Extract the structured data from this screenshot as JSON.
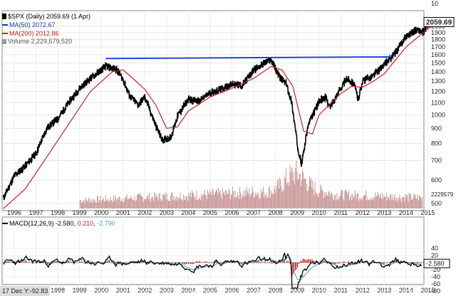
{
  "legend": {
    "title": "$SPX (Daily) 2059.69 (1 Apr)",
    "ma50": "MA(50) 2072.67",
    "ma200": "MA(200) 2012.86",
    "volume": "Volume 2,229,579,520"
  },
  "macd_legend": {
    "name": "MACD(12,26,9)",
    "v1": "-2.580",
    "v2": "0.210",
    "v3": "-2.790"
  },
  "price_box": "2059.69",
  "volume_box": "2229579",
  "macd_box": "-2.580",
  "readout": "17 Dec Y:-92.83",
  "top_fragment": "10",
  "colors": {
    "price": "#000000",
    "ma50": "#1a3aa8",
    "ma200": "#cc2222",
    "volume": "#c99999",
    "trendline": "#2244dd",
    "macd": "#000000",
    "signal": "#3aa8c8",
    "hist": "#cc2222"
  },
  "chart_data": {
    "type": "line",
    "title": "$SPX (Daily) 2059.69 (1 Apr)",
    "ylim": [
      500,
      2100
    ],
    "y_ticks": [
      500,
      600,
      700,
      800,
      900,
      1000,
      1100,
      1200,
      1300,
      1400,
      1500,
      1600,
      1700,
      1800,
      1900,
      2000
    ],
    "x_ticks": [
      "1996",
      "1997",
      "1998",
      "1999",
      "2000",
      "2001",
      "2002",
      "2003",
      "2004",
      "2005",
      "2006",
      "2007",
      "2008",
      "2009",
      "2010",
      "2011",
      "2012",
      "2013",
      "2014",
      "2015"
    ],
    "price": {
      "name": "$SPX",
      "x": [
        1995.5,
        1996.0,
        1996.5,
        1997.0,
        1997.5,
        1998.0,
        1998.5,
        1999.0,
        1999.5,
        2000.0,
        2000.2,
        2000.7,
        2001.0,
        2001.3,
        2001.7,
        2002.0,
        2002.5,
        2002.8,
        2003.2,
        2003.5,
        2004.0,
        2004.5,
        2005.0,
        2005.5,
        2006.0,
        2006.5,
        2007.0,
        2007.5,
        2007.8,
        2008.2,
        2008.5,
        2008.75,
        2009.0,
        2009.2,
        2009.5,
        2010.0,
        2010.3,
        2010.5,
        2010.9,
        2011.3,
        2011.6,
        2011.8,
        2012.0,
        2012.5,
        2013.0,
        2013.5,
        2014.0,
        2014.5,
        2014.8,
        2015.0,
        2015.25
      ],
      "y": [
        520,
        620,
        670,
        740,
        900,
        970,
        1100,
        1230,
        1330,
        1420,
        1460,
        1430,
        1320,
        1160,
        1080,
        1150,
        920,
        820,
        840,
        990,
        1130,
        1110,
        1190,
        1220,
        1270,
        1260,
        1420,
        1500,
        1540,
        1340,
        1270,
        1100,
        800,
        680,
        920,
        1110,
        1150,
        1060,
        1200,
        1330,
        1280,
        1130,
        1300,
        1360,
        1480,
        1620,
        1850,
        1950,
        1900,
        2030,
        2060
      ]
    },
    "ma200": {
      "name": "MA(200)",
      "x": [
        1995.5,
        1996.5,
        1997.5,
        1998.5,
        1999.5,
        2000.5,
        2001.0,
        2001.5,
        2002.0,
        2002.5,
        2003.0,
        2003.5,
        2004.0,
        2005.0,
        2006.0,
        2007.0,
        2007.8,
        2008.3,
        2008.8,
        2009.3,
        2009.7,
        2010.0,
        2011.0,
        2011.5,
        2012.0,
        2012.5,
        2013.0,
        2014.0,
        2015.0,
        2015.25
      ],
      "y": [
        480,
        560,
        720,
        930,
        1200,
        1400,
        1420,
        1320,
        1220,
        1080,
        900,
        910,
        1030,
        1150,
        1230,
        1330,
        1460,
        1420,
        1250,
        880,
        860,
        1000,
        1180,
        1250,
        1240,
        1300,
        1380,
        1700,
        1960,
        2013
      ]
    },
    "trendline": {
      "x": [
        2000.2,
        2013.3
      ],
      "y": [
        1553,
        1573
      ]
    },
    "volume": {
      "start_year": 1999.0,
      "ylim": [
        0,
        11000000000
      ],
      "last": 2229579520
    },
    "macd": {
      "ylim": [
        -80,
        40
      ],
      "y_ticks": [
        40,
        20,
        0,
        -20,
        -40,
        -60,
        -80
      ],
      "name": "MACD(12,26,9)",
      "last": -2.58,
      "signal": -2.79,
      "hist": 0.21
    }
  }
}
